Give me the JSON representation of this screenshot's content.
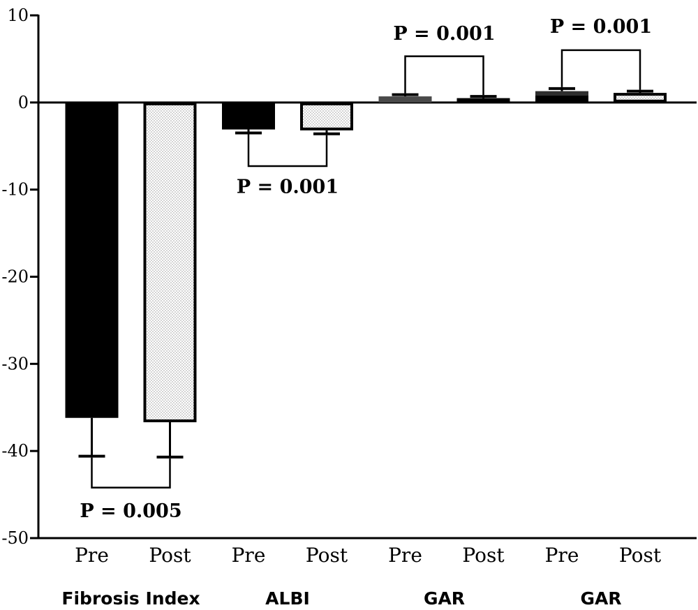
{
  "chart_data": {
    "type": "bar",
    "title": "",
    "xlabel": "",
    "ylabel": "",
    "ylim": [
      -50,
      10
    ],
    "yticks": [
      10,
      0,
      -10,
      -20,
      -30,
      -40,
      -50
    ],
    "grid": false,
    "bars": [
      {
        "group": "Fibrosis Index",
        "label": "Pre",
        "value": -36.2,
        "error": 4.4,
        "style": "solid-black"
      },
      {
        "group": "Fibrosis Index",
        "label": "Post",
        "value": -36.7,
        "error": 4.0,
        "style": "dotted-outline"
      },
      {
        "group": "ALBI",
        "label": "Pre",
        "value": -3.1,
        "error": 0.4,
        "style": "solid-black"
      },
      {
        "group": "ALBI",
        "label": "Post",
        "value": -3.2,
        "error": 0.4,
        "style": "dotted-outline"
      },
      {
        "group": "GAR",
        "label": "Pre",
        "value": 0.7,
        "error": 0.2,
        "style": "solid-gray"
      },
      {
        "group": "GAR",
        "label": "Post",
        "value": 0.5,
        "error": 0.2,
        "style": "dotted-outline"
      },
      {
        "group": "GAR",
        "label": "Pre",
        "value": 1.3,
        "error": 0.3,
        "style": "solid-gray-black"
      },
      {
        "group": "GAR",
        "label": "Post",
        "value": 1.1,
        "error": 0.2,
        "style": "dotted-outline"
      }
    ],
    "group_labels": [
      "Fibrosis Index",
      "ALBI",
      "GAR",
      "GAR"
    ],
    "comparisons": [
      {
        "bars": [
          0,
          1
        ],
        "text": "P = 0.005",
        "bracket_y": -44.2,
        "side": "below",
        "text_y": -47.6
      },
      {
        "bars": [
          2,
          3
        ],
        "text": "P = 0.001",
        "bracket_y": -7.3,
        "side": "below",
        "text_y": -10.4
      },
      {
        "bars": [
          4,
          5
        ],
        "text": "P = 0.001",
        "bracket_y": 5.3,
        "side": "above",
        "text_y": 7.2
      },
      {
        "bars": [
          6,
          7
        ],
        "text": "P = 0.001",
        "bracket_y": 6.0,
        "side": "above",
        "text_y": 8.0
      }
    ]
  }
}
